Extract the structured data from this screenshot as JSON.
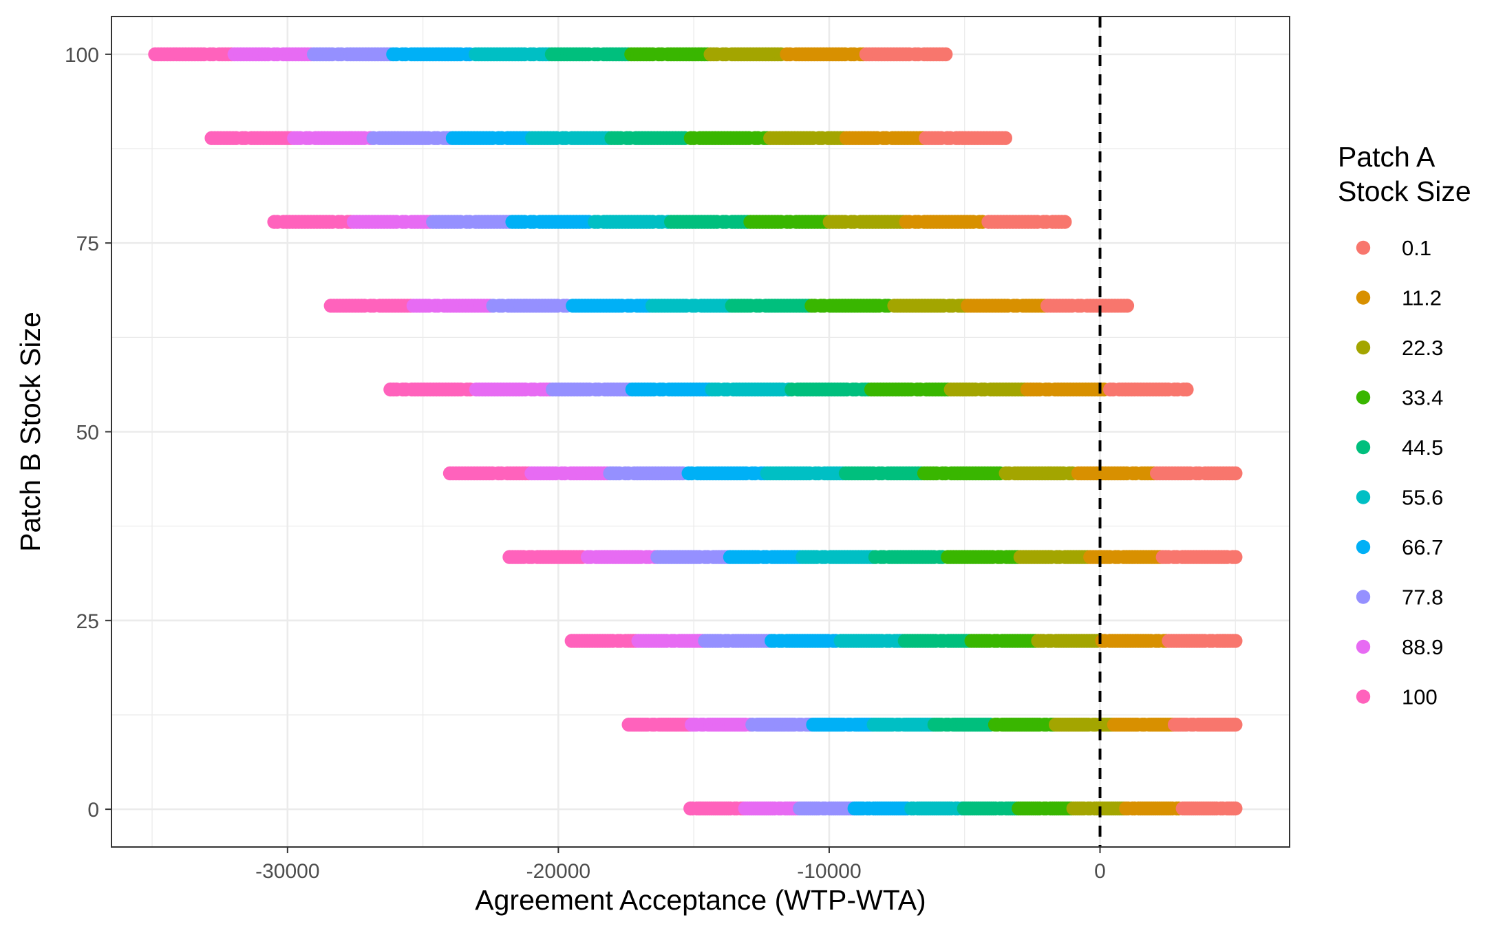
{
  "chart_data": {
    "type": "scatter",
    "title": "",
    "xlabel": "Agreement Acceptance (WTP-WTA)",
    "ylabel": "Patch B Stock Size",
    "xlim": [
      -36500,
      7000
    ],
    "ylim": [
      -5,
      105
    ],
    "x_ticks": [
      -30000,
      -20000,
      -10000,
      0
    ],
    "y_ticks": [
      0,
      25,
      50,
      75,
      100
    ],
    "grid": true,
    "reference_line": {
      "x": 0,
      "style": "dashed",
      "color": "#000000"
    },
    "legend": {
      "title_lines": [
        "Patch A",
        "Stock Size"
      ],
      "position": "right"
    },
    "patch_a_levels": [
      {
        "label": "0.1",
        "color": "#F8766D"
      },
      {
        "label": "11.2",
        "color": "#D89000"
      },
      {
        "label": "22.3",
        "color": "#A3A500"
      },
      {
        "label": "33.4",
        "color": "#39B600"
      },
      {
        "label": "44.5",
        "color": "#00BF7D"
      },
      {
        "label": "55.6",
        "color": "#00BFC4"
      },
      {
        "label": "66.7",
        "color": "#00B0F6"
      },
      {
        "label": "77.8",
        "color": "#9590FF"
      },
      {
        "label": "88.9",
        "color": "#E76BF3"
      },
      {
        "label": "100",
        "color": "#FF62BC"
      }
    ],
    "series_by_patch_b": [
      {
        "patch_b": 100,
        "x_min": -35000,
        "x_max": -5700
      },
      {
        "patch_b": 88.9,
        "x_min": -32800,
        "x_max": -3500
      },
      {
        "patch_b": 77.8,
        "x_min": -30600,
        "x_max": -1300
      },
      {
        "patch_b": 66.7,
        "x_min": -28400,
        "x_max": 1000
      },
      {
        "patch_b": 55.6,
        "x_min": -26200,
        "x_max": 3200
      },
      {
        "patch_b": 44.5,
        "x_min": -24000,
        "x_max": 5000
      },
      {
        "patch_b": 33.4,
        "x_min": -21800,
        "x_max": 5000
      },
      {
        "patch_b": 22.3,
        "x_min": -19600,
        "x_max": 5000
      },
      {
        "patch_b": 11.2,
        "x_min": -17400,
        "x_max": 5000
      },
      {
        "patch_b": 0.1,
        "x_min": -15200,
        "x_max": 5000
      }
    ]
  }
}
